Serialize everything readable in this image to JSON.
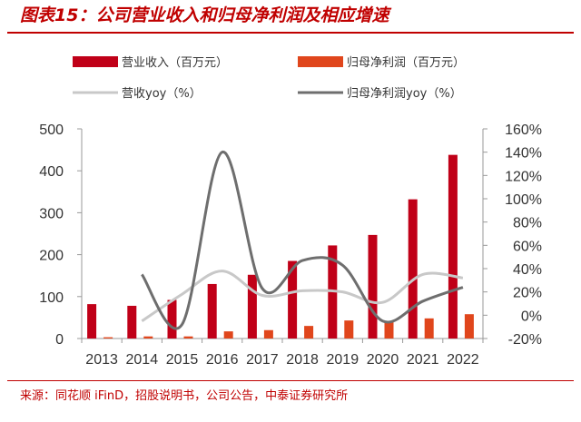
{
  "title": "图表15：公司营业收入和归母净利润及相应增速",
  "source": "来源：同花顺 iFinD，招股说明书，公司公告，中泰证券研究所",
  "colors": {
    "revenue": "#c00018",
    "profit": "#e0461c",
    "revenue_yoy": "#c8c8c8",
    "profit_yoy": "#6e6e6e",
    "accent": "#c00000"
  },
  "chart_data": {
    "type": "bar",
    "categories": [
      "2013",
      "2014",
      "2015",
      "2016",
      "2017",
      "2018",
      "2019",
      "2020",
      "2021",
      "2022"
    ],
    "series": [
      {
        "name": "营业收入（百万元）",
        "type": "bar",
        "axis": "left",
        "values": [
          82,
          78,
          92,
          130,
          152,
          185,
          222,
          247,
          332,
          438
        ]
      },
      {
        "name": "归母净利润（百万元）",
        "type": "bar",
        "axis": "left",
        "values": [
          3,
          5,
          5,
          17,
          20,
          30,
          43,
          40,
          48,
          58
        ]
      },
      {
        "name": "营收yoy（%）",
        "type": "line",
        "axis": "right",
        "values": [
          null,
          -5,
          18,
          38,
          17,
          21,
          20,
          11,
          35,
          32
        ]
      },
      {
        "name": "归母净利润yoy（%）",
        "type": "line",
        "axis": "right",
        "values": [
          null,
          35,
          -8,
          140,
          23,
          47,
          43,
          -5,
          12,
          24
        ]
      }
    ],
    "ylim_left": [
      0,
      500
    ],
    "yticks_left": [
      "0",
      "100",
      "200",
      "300",
      "400",
      "500"
    ],
    "ylim_right": [
      -20,
      160
    ],
    "yticks_right": [
      "-20%",
      "0%",
      "20%",
      "40%",
      "60%",
      "80%",
      "100%",
      "120%",
      "140%",
      "160%"
    ],
    "legend": "top"
  }
}
